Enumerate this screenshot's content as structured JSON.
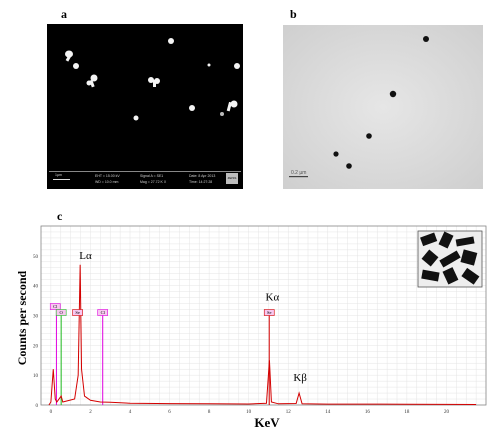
{
  "panels": {
    "a": {
      "letter": "a",
      "sem_info": {
        "scale": "1µm",
        "line1a": "EHT = 15.00 kV",
        "line1b": "WD = 10.0 mm",
        "line2a": "Signal A = SE1",
        "line2b": "Mag = 27.72 K X",
        "line3a": "Date: 8 Apr 2013",
        "line3b": "Time: 14:27:28"
      },
      "logo": "ZEISS"
    },
    "b": {
      "letter": "b",
      "scale": "0.2 µm"
    },
    "c": {
      "letter": "c"
    }
  },
  "chart_data": {
    "type": "line",
    "title": "",
    "xlabel": "KeV",
    "ylabel": "Counts per second",
    "xlim": [
      -0.5,
      22
    ],
    "ylim": [
      0,
      60
    ],
    "x_ticks": [
      0,
      2,
      4,
      6,
      8,
      10,
      12,
      14,
      16,
      18,
      20
    ],
    "y_ticks": [
      0,
      10,
      20,
      30,
      40,
      50
    ],
    "grid": true,
    "series": [
      {
        "color": "#d40000",
        "points": [
          [
            -0.1,
            0
          ],
          [
            0,
            1
          ],
          [
            0.12,
            12
          ],
          [
            0.22,
            2
          ],
          [
            0.3,
            1
          ],
          [
            0.52,
            3
          ],
          [
            0.6,
            1
          ],
          [
            0.9,
            1.5
          ],
          [
            1.2,
            2
          ],
          [
            1.38,
            10
          ],
          [
            1.48,
            47
          ],
          [
            1.55,
            12
          ],
          [
            1.7,
            3
          ],
          [
            2.0,
            1.6
          ],
          [
            2.5,
            1
          ],
          [
            3,
            0.9
          ],
          [
            4,
            0.6
          ],
          [
            6,
            0.45
          ],
          [
            8,
            0.4
          ],
          [
            10,
            0.35
          ],
          [
            10.9,
            0.6
          ],
          [
            11.05,
            15
          ],
          [
            11.15,
            1
          ],
          [
            11.5,
            0.4
          ],
          [
            12.4,
            0.5
          ],
          [
            12.55,
            4
          ],
          [
            12.7,
            0.4
          ],
          [
            14,
            0.3
          ],
          [
            16,
            0.3
          ],
          [
            18,
            0.25
          ],
          [
            20,
            0.2
          ],
          [
            21.5,
            0.15
          ]
        ]
      }
    ],
    "marker_lines": [
      {
        "x": 0.28,
        "top": 33,
        "color": "#e000e0"
      },
      {
        "x": 0.52,
        "top": 31,
        "color": "#22bb22"
      },
      {
        "x": 2.62,
        "top": 31,
        "color": "#e000e0"
      },
      {
        "x": 11.04,
        "top": 31,
        "color": "#d40000"
      }
    ],
    "tags": [
      {
        "text": "Cl",
        "x": 0.22,
        "y": 33,
        "color": "#e000e0"
      },
      {
        "text": "Cl",
        "x": 2.62,
        "y": 31,
        "color": "#e000e0"
      },
      {
        "text": "O",
        "x": 0.52,
        "y": 31,
        "color": "#22bb22"
      },
      {
        "text": "Se",
        "x": 1.35,
        "y": 31,
        "color": "#d40000"
      },
      {
        "text": "Se",
        "x": 11.04,
        "y": 31,
        "color": "#d40000"
      }
    ],
    "peak_labels": [
      {
        "text": "Lα",
        "x": 1.75,
        "y": 49
      },
      {
        "text": "Kα",
        "x": 11.2,
        "y": 35
      },
      {
        "text": "Kβ",
        "x": 12.6,
        "y": 8
      }
    ]
  }
}
